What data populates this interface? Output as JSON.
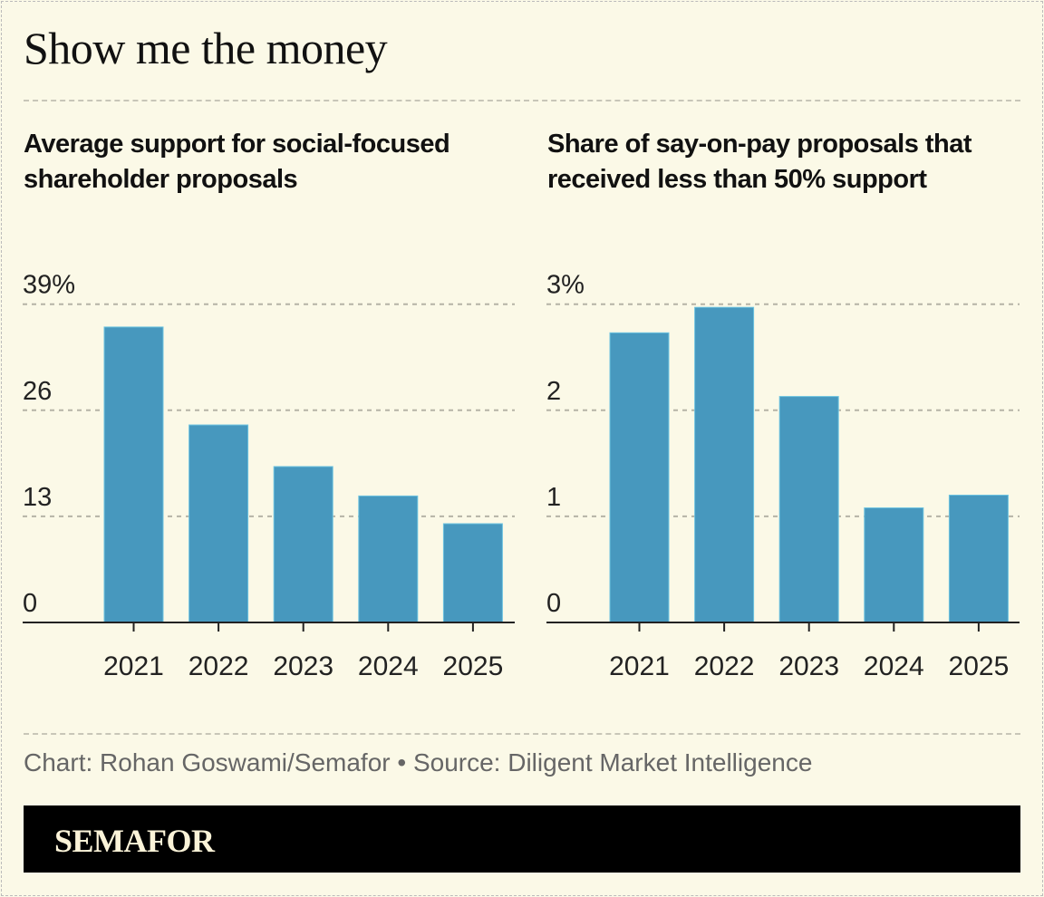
{
  "title": "Show me the money",
  "colors": {
    "bar": "#4798be",
    "background": "#fbf9e7",
    "grid": "#b5b3a6"
  },
  "chart_data": [
    {
      "type": "bar",
      "title": "Average support for social-focused shareholder proposals",
      "categories": [
        "2021",
        "2022",
        "2023",
        "2024",
        "2025"
      ],
      "values": [
        36.2,
        24.2,
        19.1,
        15.5,
        12.1
      ],
      "ylim": [
        0,
        39
      ],
      "yticks": [
        "0",
        "13",
        "26",
        "39%"
      ],
      "ytick_values": [
        0,
        13,
        26,
        39
      ],
      "grid": true
    },
    {
      "type": "bar",
      "title": "Share of say-on-pay proposals that received less than 50% support",
      "categories": [
        "2021",
        "2022",
        "2023",
        "2024",
        "2025"
      ],
      "values": [
        2.73,
        2.97,
        2.13,
        1.08,
        1.2
      ],
      "ylim": [
        0,
        3
      ],
      "yticks": [
        "0",
        "1",
        "2",
        "3%"
      ],
      "ytick_values": [
        0,
        1,
        2,
        3
      ],
      "grid": true
    }
  ],
  "source": "Chart: Rohan Goswami/Semafor • Source: Diligent Market Intelligence",
  "logo": "SEMAFOR"
}
